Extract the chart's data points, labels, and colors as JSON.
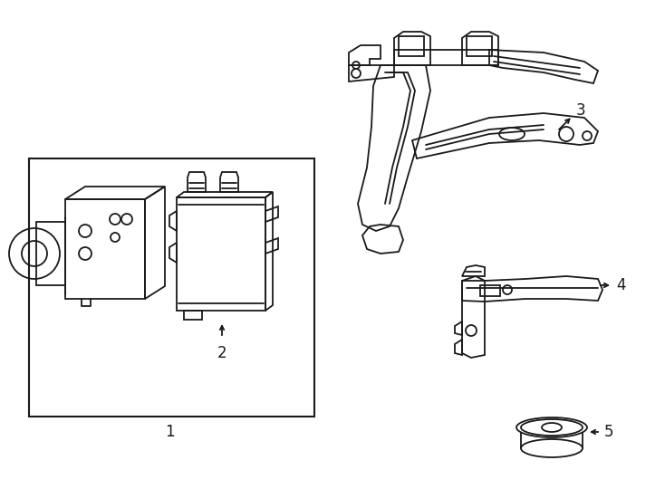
{
  "background_color": "#ffffff",
  "line_color": "#1a1a1a",
  "line_width": 1.3,
  "fig_width": 7.34,
  "fig_height": 5.4,
  "dpi": 100,
  "label_fontsize": 12
}
